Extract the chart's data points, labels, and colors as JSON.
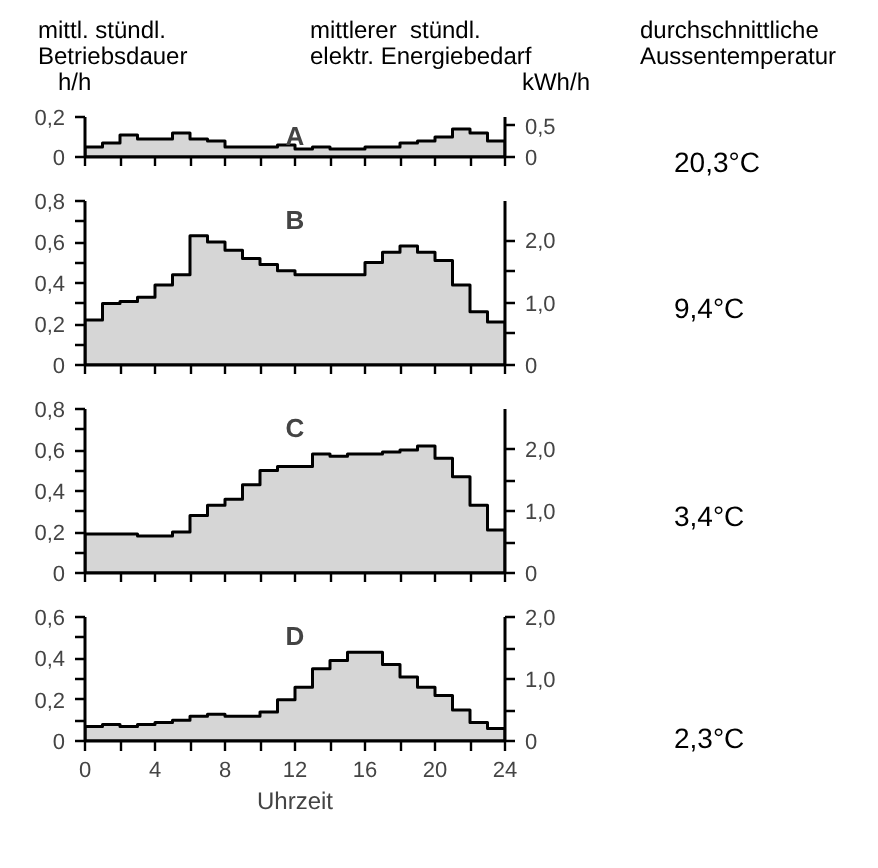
{
  "chart_data": [
    {
      "type": "area",
      "title": "A",
      "ylabel": "mittl. stündl.\nBetriebsdauer\nh/h",
      "y2label": "mittlerer  stündl.\nelektr. Energiebedarf\nkWh/h",
      "annotations": [
        "durchschnittliche\nAussentemperatur",
        "20,3°C"
      ],
      "x": [
        0,
        1,
        2,
        3,
        4,
        5,
        6,
        7,
        8,
        9,
        10,
        11,
        12,
        13,
        14,
        15,
        16,
        17,
        18,
        19,
        20,
        21,
        22,
        23,
        24
      ],
      "series": [
        {
          "color": "#000000",
          "values": [
            0.05,
            0.07,
            0.11,
            0.09,
            0.09,
            0.12,
            0.09,
            0.08,
            0.05,
            0.05,
            0.05,
            0.06,
            0.04,
            0.05,
            0.04,
            0.04,
            0.05,
            0.05,
            0.07,
            0.08,
            0.1,
            0.14,
            0.12,
            0.08,
            0.08
          ]
        }
      ],
      "xlim": [
        0,
        24
      ],
      "ylim": [
        0,
        0.2
      ],
      "y2lim": [
        0,
        0.64
      ],
      "xticks": [
        0,
        {
          "value": 2,
          "label": null
        },
        4,
        {
          "value": 6,
          "label": null
        },
        8,
        {
          "value": 10,
          "label": null
        },
        12,
        {
          "value": 14,
          "label": null
        },
        16,
        {
          "value": 18,
          "label": null
        },
        20,
        {
          "value": 22,
          "label": null
        },
        24
      ],
      "yticks": [
        0,
        {
          "value": 0.2,
          "label": "0,2"
        }
      ],
      "y2ticks": [
        0,
        {
          "value": 0.5,
          "label": "0,5"
        }
      ],
      "tick_labels": "y",
      "grid": false
    },
    {
      "type": "area",
      "title": "B",
      "annotations": [
        "9,4°C"
      ],
      "x": [
        0,
        1,
        2,
        3,
        4,
        5,
        6,
        7,
        8,
        9,
        10,
        11,
        12,
        13,
        14,
        15,
        16,
        17,
        18,
        19,
        20,
        21,
        22,
        23,
        24
      ],
      "series": [
        {
          "color": "#000000",
          "values": [
            0.22,
            0.3,
            0.31,
            0.33,
            0.39,
            0.44,
            0.63,
            0.6,
            0.56,
            0.52,
            0.49,
            0.46,
            0.44,
            0.44,
            0.44,
            0.44,
            0.5,
            0.55,
            0.58,
            0.55,
            0.51,
            0.39,
            0.26,
            0.21,
            0.21
          ]
        }
      ],
      "xlim": [
        0,
        24
      ],
      "ylim": [
        0,
        0.8
      ],
      "y2lim": [
        0,
        2.63
      ],
      "xticks": [
        0,
        {
          "value": 2,
          "label": null
        },
        4,
        {
          "value": 6,
          "label": null
        },
        8,
        {
          "value": 10,
          "label": null
        },
        12,
        {
          "value": 14,
          "label": null
        },
        16,
        {
          "value": 18,
          "label": null
        },
        20,
        {
          "value": 22,
          "label": null
        },
        24
      ],
      "yticks": [
        0,
        {
          "value": 0.1,
          "label": null
        },
        {
          "value": 0.2,
          "label": "0,2"
        },
        {
          "value": 0.3,
          "label": null
        },
        {
          "value": 0.4,
          "label": "0,4"
        },
        {
          "value": 0.5,
          "label": null
        },
        {
          "value": 0.6,
          "label": "0,6"
        },
        {
          "value": 0.7,
          "label": null
        },
        {
          "value": 0.8,
          "label": "0,8"
        }
      ],
      "y2ticks": [
        0,
        {
          "value": 0.5,
          "label": null
        },
        {
          "value": 1.0,
          "label": "1,0"
        },
        {
          "value": 1.5,
          "label": null
        },
        {
          "value": 2.0,
          "label": "2,0"
        }
      ],
      "tick_labels": "y",
      "grid": false
    },
    {
      "type": "area",
      "title": "C",
      "annotations": [
        "3,4°C"
      ],
      "x": [
        0,
        1,
        2,
        3,
        4,
        5,
        6,
        7,
        8,
        9,
        10,
        11,
        12,
        13,
        14,
        15,
        16,
        17,
        18,
        19,
        20,
        21,
        22,
        23,
        24
      ],
      "series": [
        {
          "color": "#000000",
          "values": [
            0.19,
            0.19,
            0.19,
            0.18,
            0.18,
            0.2,
            0.28,
            0.33,
            0.36,
            0.43,
            0.5,
            0.52,
            0.52,
            0.58,
            0.57,
            0.58,
            0.58,
            0.59,
            0.6,
            0.62,
            0.56,
            0.47,
            0.33,
            0.21,
            0.21
          ]
        }
      ],
      "xlim": [
        0,
        24
      ],
      "ylim": [
        0,
        0.8
      ],
      "y2lim": [
        0,
        2.65
      ],
      "xticks": [
        0,
        {
          "value": 2,
          "label": null
        },
        4,
        {
          "value": 6,
          "label": null
        },
        8,
        {
          "value": 10,
          "label": null
        },
        12,
        {
          "value": 14,
          "label": null
        },
        16,
        {
          "value": 18,
          "label": null
        },
        20,
        {
          "value": 22,
          "label": null
        },
        24
      ],
      "yticks": [
        0,
        {
          "value": 0.1,
          "label": null
        },
        {
          "value": 0.2,
          "label": "0,2"
        },
        {
          "value": 0.3,
          "label": null
        },
        {
          "value": 0.4,
          "label": "0,4"
        },
        {
          "value": 0.5,
          "label": null
        },
        {
          "value": 0.6,
          "label": "0,6"
        },
        {
          "value": 0.7,
          "label": null
        },
        {
          "value": 0.8,
          "label": "0,8"
        }
      ],
      "y2ticks": [
        0,
        {
          "value": 0.5,
          "label": null
        },
        {
          "value": 1.0,
          "label": "1,0"
        },
        {
          "value": 1.5,
          "label": null
        },
        {
          "value": 2.0,
          "label": "2,0"
        }
      ],
      "tick_labels": "y",
      "grid": false
    },
    {
      "type": "area",
      "title": "D",
      "xlabel": "Uhrzeit",
      "annotations": [
        "2,3°C"
      ],
      "x": [
        0,
        1,
        2,
        3,
        4,
        5,
        6,
        7,
        8,
        9,
        10,
        11,
        12,
        13,
        14,
        15,
        16,
        17,
        18,
        19,
        20,
        21,
        22,
        23,
        24
      ],
      "series": [
        {
          "color": "#000000",
          "values": [
            0.07,
            0.08,
            0.07,
            0.08,
            0.09,
            0.1,
            0.12,
            0.13,
            0.12,
            0.12,
            0.14,
            0.2,
            0.26,
            0.35,
            0.39,
            0.43,
            0.43,
            0.37,
            0.31,
            0.26,
            0.22,
            0.15,
            0.09,
            0.06,
            0.06
          ]
        }
      ],
      "xlim": [
        0,
        24
      ],
      "ylim": [
        0,
        0.6
      ],
      "y2lim": [
        0,
        2.0
      ],
      "xticks": [
        0,
        {
          "value": 2,
          "label": null
        },
        4,
        {
          "value": 6,
          "label": null
        },
        8,
        {
          "value": 10,
          "label": null
        },
        12,
        {
          "value": 14,
          "label": null
        },
        16,
        {
          "value": 18,
          "label": null
        },
        20,
        {
          "value": 22,
          "label": null
        },
        24
      ],
      "yticks": [
        0,
        {
          "value": 0.1,
          "label": null
        },
        {
          "value": 0.2,
          "label": "0,2"
        },
        {
          "value": 0.3,
          "label": null
        },
        {
          "value": 0.4,
          "label": "0,4"
        },
        {
          "value": 0.5,
          "label": null
        },
        {
          "value": 0.6,
          "label": "0,6"
        }
      ],
      "y2ticks": [
        0,
        {
          "value": 0.5,
          "label": null
        },
        {
          "value": 1.0,
          "label": "1,0"
        },
        {
          "value": 1.5,
          "label": null
        },
        {
          "value": 2.0,
          "label": "2,0"
        }
      ],
      "grid": false
    }
  ]
}
